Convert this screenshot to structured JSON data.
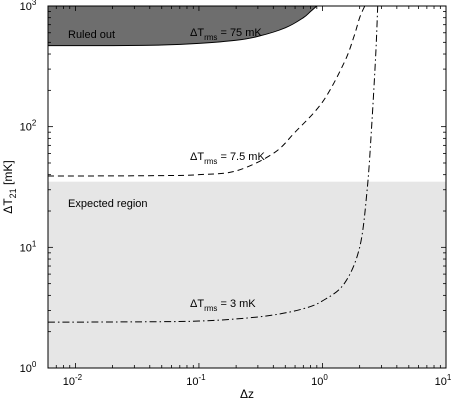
{
  "chart_data": {
    "type": "line",
    "xlabel": "Δz",
    "ylabel_main": "ΔT",
    "ylabel_sub": "21",
    "ylabel_unit": " [mK]",
    "x_scale": "log",
    "y_scale": "log",
    "xlim": [
      0.006,
      10
    ],
    "ylim": [
      1,
      1000
    ],
    "x_ticks": [
      {
        "value": 0.01,
        "base": "10",
        "exp": "-2"
      },
      {
        "value": 0.1,
        "base": "10",
        "exp": "-1"
      },
      {
        "value": 1,
        "base": "10",
        "exp": "0"
      },
      {
        "value": 10,
        "base": "10",
        "exp": "1"
      }
    ],
    "y_ticks": [
      {
        "value": 1,
        "base": "10",
        "exp": "0"
      },
      {
        "value": 10,
        "base": "10",
        "exp": "1"
      },
      {
        "value": 100,
        "base": "10",
        "exp": "2"
      },
      {
        "value": 1000,
        "base": "10",
        "exp": "3"
      }
    ],
    "grid": false,
    "regions": [
      {
        "name": "ruled-out",
        "label": "Ruled out",
        "color": "#6e6e6e",
        "boundary": [
          [
            0.006,
            470
          ],
          [
            0.02,
            470
          ],
          [
            0.05,
            475
          ],
          [
            0.1,
            490
          ],
          [
            0.2,
            520
          ],
          [
            0.3,
            560
          ],
          [
            0.5,
            660
          ],
          [
            0.7,
            800
          ],
          [
            0.8,
            900
          ],
          [
            0.9,
            1000
          ]
        ]
      },
      {
        "name": "expected-region",
        "label": "Expected region",
        "color": "#e6e6e6",
        "y_range": [
          1,
          35
        ]
      }
    ],
    "series": [
      {
        "label_main": "ΔT",
        "label_sub": "rms",
        "label_value": " = 75 mK",
        "style": "solid",
        "values": [
          [
            0.006,
            470
          ],
          [
            0.02,
            470
          ],
          [
            0.05,
            475
          ],
          [
            0.1,
            490
          ],
          [
            0.2,
            520
          ],
          [
            0.3,
            560
          ],
          [
            0.5,
            660
          ],
          [
            0.7,
            800
          ],
          [
            0.8,
            900
          ],
          [
            0.9,
            1000
          ]
        ]
      },
      {
        "label_main": "ΔT",
        "label_sub": "rms",
        "label_value": " = 7.5 mK",
        "style": "dashed",
        "values": [
          [
            0.006,
            39
          ],
          [
            0.01,
            39
          ],
          [
            0.05,
            39.3
          ],
          [
            0.1,
            40
          ],
          [
            0.2,
            43
          ],
          [
            0.4,
            60
          ],
          [
            0.6,
            90
          ],
          [
            1,
            160
          ],
          [
            1.5,
            340
          ],
          [
            1.8,
            560
          ],
          [
            2.0,
            800
          ],
          [
            2.2,
            1000
          ]
        ]
      },
      {
        "label_main": "ΔT",
        "label_sub": "rms",
        "label_value": " = 3 mK",
        "style": "dashdot",
        "values": [
          [
            0.006,
            2.4
          ],
          [
            0.01,
            2.4
          ],
          [
            0.05,
            2.42
          ],
          [
            0.1,
            2.45
          ],
          [
            0.2,
            2.55
          ],
          [
            0.4,
            2.75
          ],
          [
            0.7,
            3.1
          ],
          [
            1,
            3.6
          ],
          [
            1.5,
            5
          ],
          [
            2,
            10
          ],
          [
            2.3,
            30
          ],
          [
            2.5,
            100
          ],
          [
            2.7,
            400
          ],
          [
            2.8,
            1000
          ]
        ]
      }
    ],
    "colors": {
      "lines": "#000000",
      "ruled_out_fill": "#6e6e6e",
      "expected_fill": "#e6e6e6"
    }
  }
}
